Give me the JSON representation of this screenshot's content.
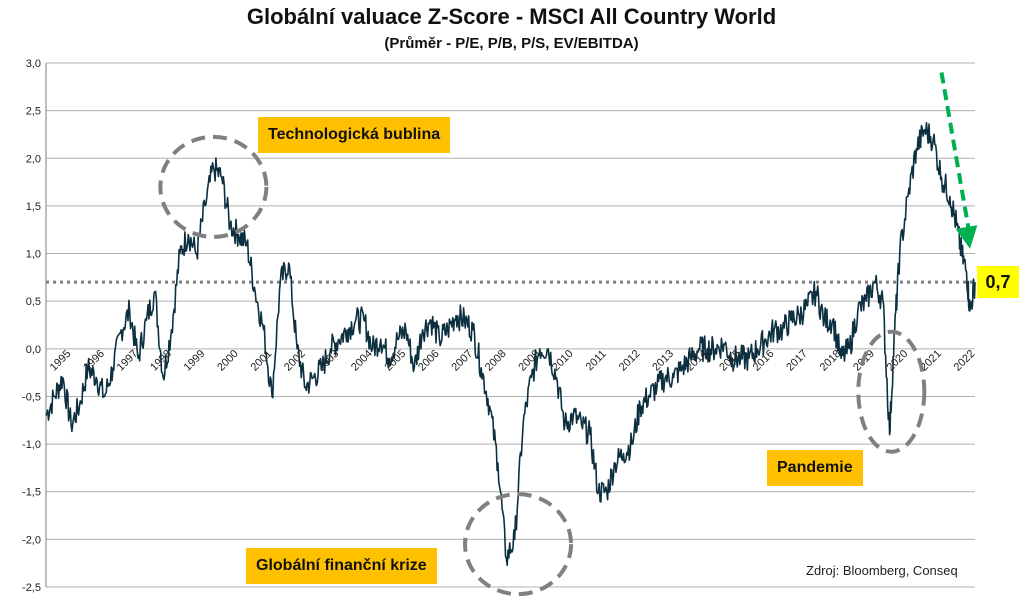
{
  "chart_data": {
    "type": "line",
    "title": "Globální valuace Z-Score - MSCI All Country World",
    "subtitle": "(Průměr - P/E, P/B, P/S, EV/EBITDA)",
    "xlabel": "",
    "ylabel": "",
    "ylim": [
      -2.5,
      3.0
    ],
    "xlim": [
      1995,
      2022.75
    ],
    "y_ticks": [
      "3,0",
      "2,5",
      "2,0",
      "1,5",
      "1,0",
      "0,5",
      "0,0",
      "-0,5",
      "-1,0",
      "-1,5",
      "-2,0",
      "-2,5"
    ],
    "x_ticks": [
      "1995",
      "1996",
      "1997",
      "1998",
      "1999",
      "2000",
      "2001",
      "2002",
      "2003",
      "2004",
      "2005",
      "2006",
      "2007",
      "2008",
      "2009",
      "2010",
      "2011",
      "2012",
      "2013",
      "2014",
      "2015",
      "2016",
      "2017",
      "2018",
      "2019",
      "2020",
      "2021",
      "2022"
    ],
    "grid": true,
    "series_color": "#0d3040",
    "reference_line": {
      "y": 0.7,
      "style": "dotted",
      "color": "#7f7f7f"
    },
    "current_value_label": "0,7",
    "series": [
      {
        "x": [
          1995.0,
          1995.25,
          1995.5,
          1995.75,
          1996.0,
          1996.25,
          1996.5,
          1996.75,
          1997.0,
          1997.25,
          1997.5,
          1997.75,
          1998.0,
          1998.25,
          1998.5,
          1998.75,
          1999.0,
          1999.25,
          1999.5,
          1999.75,
          2000.0,
          2000.25,
          2000.5,
          2000.75,
          2001.0,
          2001.25,
          2001.5,
          2001.75,
          2002.0,
          2002.25,
          2002.5,
          2002.75,
          2003.0,
          2003.25,
          2003.5,
          2003.75,
          2004.0,
          2004.25,
          2004.5,
          2004.75,
          2005.0,
          2005.25,
          2005.5,
          2005.75,
          2006.0,
          2006.25,
          2006.5,
          2006.75,
          2007.0,
          2007.25,
          2007.5,
          2007.75,
          2008.0,
          2008.25,
          2008.5,
          2008.75,
          2009.0,
          2009.25,
          2009.5,
          2009.75,
          2010.0,
          2010.25,
          2010.5,
          2010.75,
          2011.0,
          2011.25,
          2011.5,
          2011.75,
          2012.0,
          2012.25,
          2012.5,
          2012.75,
          2013.0,
          2013.25,
          2013.5,
          2013.75,
          2014.0,
          2014.25,
          2014.5,
          2014.75,
          2015.0,
          2015.25,
          2015.5,
          2015.75,
          2016.0,
          2016.25,
          2016.5,
          2016.75,
          2017.0,
          2017.25,
          2017.5,
          2017.75,
          2018.0,
          2018.25,
          2018.5,
          2018.75,
          2019.0,
          2019.25,
          2019.5,
          2019.75,
          2020.0,
          2020.2,
          2020.35,
          2020.5,
          2020.75,
          2021.0,
          2021.25,
          2021.5,
          2021.75,
          2022.0,
          2022.2,
          2022.35,
          2022.5,
          2022.6,
          2022.75
        ],
        "y": [
          -0.7,
          -0.5,
          -0.3,
          -0.8,
          -0.6,
          -0.2,
          -0.3,
          -0.5,
          -0.2,
          0.2,
          0.4,
          -0.1,
          0.3,
          0.6,
          -0.3,
          0.2,
          1.0,
          1.2,
          1.0,
          1.5,
          1.9,
          1.8,
          1.3,
          1.2,
          1.1,
          0.6,
          0.2,
          -0.5,
          0.7,
          0.9,
          0.0,
          -0.4,
          -0.3,
          -0.2,
          0.0,
          0.1,
          0.2,
          0.3,
          0.3,
          0.0,
          0.1,
          -0.1,
          0.1,
          0.2,
          -0.2,
          0.2,
          0.3,
          0.1,
          0.2,
          0.35,
          0.3,
          0.2,
          -0.2,
          -0.6,
          -1.2,
          -2.2,
          -2.0,
          -0.8,
          -0.3,
          0.0,
          0.0,
          -0.3,
          -0.8,
          -0.7,
          -0.8,
          -0.9,
          -1.5,
          -1.5,
          -1.2,
          -1.1,
          -1.0,
          -0.6,
          -0.5,
          -0.4,
          -0.3,
          -0.3,
          -0.2,
          -0.1,
          0.0,
          0.0,
          0.0,
          0.05,
          -0.1,
          -0.1,
          -0.1,
          0.0,
          0.1,
          0.2,
          0.2,
          0.3,
          0.35,
          0.45,
          0.6,
          0.3,
          0.3,
          -0.1,
          0.0,
          0.4,
          0.5,
          0.7,
          0.5,
          -0.9,
          0.2,
          1.0,
          1.6,
          2.1,
          2.3,
          2.2,
          1.8,
          1.6,
          1.3,
          1.0,
          0.8,
          0.4,
          0.7
        ]
      }
    ],
    "annotations": [
      {
        "label": "Technologická bublina",
        "x": 2000.0,
        "y": 1.7,
        "marker": "dashed-ellipse",
        "color": "#ffc000"
      },
      {
        "label": "Globální finanční krize",
        "x": 2009.1,
        "y": -2.05,
        "marker": "dashed-ellipse",
        "color": "#ffc000"
      },
      {
        "label": "Pandemie",
        "x": 2020.25,
        "y": -0.45,
        "marker": "dashed-ellipse",
        "color": "#ffc000"
      }
    ],
    "trend_arrow": {
      "from": [
        2021.75,
        2.9
      ],
      "to": [
        2022.6,
        1.05
      ],
      "color": "#00b050",
      "style": "dashed"
    },
    "source": "Zdroj: Bloomberg, Conseq"
  }
}
